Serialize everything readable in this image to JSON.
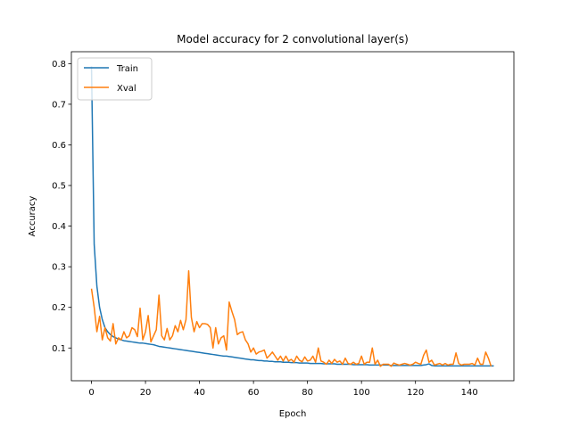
{
  "chart_data": {
    "type": "line",
    "title": "Model accuracy for 2 convolutional layer(s)",
    "xlabel": "Epoch",
    "ylabel": "Accuracy",
    "xlim": [
      -7.45,
      156.45
    ],
    "ylim": [
      0.0194,
      0.8293
    ],
    "xticks": [
      0,
      20,
      40,
      60,
      80,
      100,
      120,
      140
    ],
    "yticks": [
      0.1,
      0.2,
      0.3,
      0.4,
      0.5,
      0.6,
      0.7,
      0.8
    ],
    "grid": false,
    "legend_position": "top-left",
    "series": [
      {
        "name": "Train",
        "color": "#1f77b4",
        "values": [
          0.793,
          0.355,
          0.252,
          0.2,
          0.17,
          0.15,
          0.14,
          0.133,
          0.128,
          0.125,
          0.122,
          0.12,
          0.118,
          0.117,
          0.116,
          0.115,
          0.114,
          0.113,
          0.112,
          0.112,
          0.111,
          0.11,
          0.109,
          0.108,
          0.106,
          0.104,
          0.103,
          0.102,
          0.101,
          0.1,
          0.099,
          0.098,
          0.097,
          0.096,
          0.095,
          0.094,
          0.093,
          0.092,
          0.091,
          0.09,
          0.089,
          0.088,
          0.087,
          0.086,
          0.085,
          0.084,
          0.083,
          0.082,
          0.081,
          0.08,
          0.08,
          0.079,
          0.078,
          0.077,
          0.076,
          0.075,
          0.074,
          0.073,
          0.072,
          0.071,
          0.071,
          0.07,
          0.069,
          0.069,
          0.068,
          0.068,
          0.067,
          0.067,
          0.066,
          0.066,
          0.066,
          0.065,
          0.065,
          0.065,
          0.064,
          0.064,
          0.064,
          0.063,
          0.063,
          0.063,
          0.063,
          0.062,
          0.062,
          0.062,
          0.062,
          0.062,
          0.061,
          0.061,
          0.061,
          0.061,
          0.061,
          0.06,
          0.06,
          0.06,
          0.06,
          0.06,
          0.06,
          0.059,
          0.059,
          0.059,
          0.059,
          0.059,
          0.059,
          0.058,
          0.058,
          0.058,
          0.058,
          0.058,
          0.058,
          0.058,
          0.058,
          0.057,
          0.057,
          0.057,
          0.057,
          0.057,
          0.057,
          0.057,
          0.057,
          0.057,
          0.057,
          0.057,
          0.057,
          0.058,
          0.059,
          0.061,
          0.057,
          0.056,
          0.056,
          0.056,
          0.056,
          0.056,
          0.056,
          0.056,
          0.056,
          0.056,
          0.056,
          0.056,
          0.056,
          0.056,
          0.056,
          0.056,
          0.056,
          0.056,
          0.056,
          0.056,
          0.056,
          0.056,
          0.056,
          0.056
        ],
        "values_note": "Xval column continues below"
      },
      {
        "name": "Xval",
        "color": "#ff7f0e",
        "values": [
          0.246,
          0.2,
          0.14,
          0.178,
          0.12,
          0.15,
          0.125,
          0.117,
          0.16,
          0.11,
          0.125,
          0.12,
          0.14,
          0.125,
          0.13,
          0.15,
          0.145,
          0.128,
          0.198,
          0.12,
          0.14,
          0.18,
          0.115,
          0.13,
          0.145,
          0.23,
          0.13,
          0.12,
          0.148,
          0.12,
          0.13,
          0.155,
          0.14,
          0.168,
          0.145,
          0.17,
          0.29,
          0.175,
          0.14,
          0.165,
          0.15,
          0.16,
          0.16,
          0.158,
          0.15,
          0.1,
          0.15,
          0.11,
          0.125,
          0.13,
          0.095,
          0.213,
          0.19,
          0.17,
          0.133,
          0.138,
          0.14,
          0.12,
          0.11,
          0.09,
          0.1,
          0.085,
          0.09,
          0.092,
          0.095,
          0.075,
          0.082,
          0.09,
          0.08,
          0.07,
          0.08,
          0.068,
          0.08,
          0.068,
          0.072,
          0.065,
          0.08,
          0.07,
          0.066,
          0.078,
          0.068,
          0.07,
          0.08,
          0.065,
          0.1,
          0.068,
          0.065,
          0.06,
          0.07,
          0.062,
          0.072,
          0.065,
          0.068,
          0.06,
          0.075,
          0.062,
          0.06,
          0.065,
          0.06,
          0.062,
          0.08,
          0.06,
          0.065,
          0.065,
          0.1,
          0.06,
          0.07,
          0.055,
          0.06,
          0.06,
          0.06,
          0.055,
          0.063,
          0.06,
          0.058,
          0.06,
          0.062,
          0.06,
          0.058,
          0.06,
          0.065,
          0.062,
          0.06,
          0.082,
          0.095,
          0.065,
          0.07,
          0.058,
          0.06,
          0.062,
          0.058,
          0.062,
          0.058,
          0.06,
          0.06,
          0.088,
          0.062,
          0.058,
          0.06,
          0.06,
          0.06,
          0.062,
          0.058,
          0.075,
          0.06,
          0.06,
          0.09,
          0.075,
          0.055
        ]
      }
    ]
  }
}
